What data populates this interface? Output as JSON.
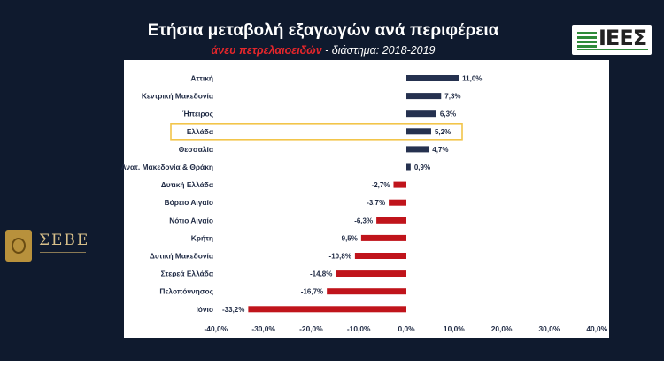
{
  "header": {
    "title": "Ετήσια μεταβολή εξαγωγών ανά περιφέρεια",
    "subtitle_highlight": "άνευ πετρελαιοειδών",
    "subtitle_rest": " - διάστημα: 2018-2019"
  },
  "logos": {
    "ieee_text": "ΙΕΕΣ",
    "seve_text": "ΣΕΒΕ"
  },
  "colors": {
    "positive": "#25314f",
    "negative": "#c0141b",
    "highlight_box": "#f2c54a"
  },
  "chart_data": {
    "type": "bar",
    "orientation": "horizontal",
    "title": "Ετήσια μεταβολή εξαγωγών ανά περιφέρεια",
    "subtitle": "άνευ πετρελαιοειδών - διάστημα: 2018-2019",
    "categories": [
      "Αττική",
      "Κεντρική Μακεδονία",
      "Ήπειρος",
      "Ελλάδα",
      "Θεσσαλία",
      "Ανατ. Μακεδονία & Θράκη",
      "Δυτική Ελλάδα",
      "Βόρειο Αιγαίο",
      "Νότιο Αιγαίο",
      "Κρήτη",
      "Δυτική Μακεδονία",
      "Στερεά Ελλάδα",
      "Πελοπόννησος",
      "Ιόνιο"
    ],
    "values": [
      11.0,
      7.3,
      6.3,
      5.2,
      4.7,
      0.9,
      -2.7,
      -3.7,
      -6.3,
      -9.5,
      -10.8,
      -14.8,
      -16.7,
      -33.2
    ],
    "value_labels": [
      "11,0%",
      "7,3%",
      "6,3%",
      "5,2%",
      "4,7%",
      "0,9%",
      "-2,7%",
      "-3,7%",
      "-6,3%",
      "-9,5%",
      "-10,8%",
      "-14,8%",
      "-16,7%",
      "-33,2%"
    ],
    "highlighted_category": "Ελλάδα",
    "xlim": [
      -40,
      40
    ],
    "xticks": [
      -40,
      -30,
      -20,
      -10,
      0,
      10,
      20,
      30,
      40
    ],
    "xtick_labels": [
      "-40,0%",
      "-30,0%",
      "-20,0%",
      "-10,0%",
      "0,0%",
      "10,0%",
      "20,0%",
      "30,0%",
      "40,0%"
    ],
    "grid": false,
    "legend": "none"
  }
}
